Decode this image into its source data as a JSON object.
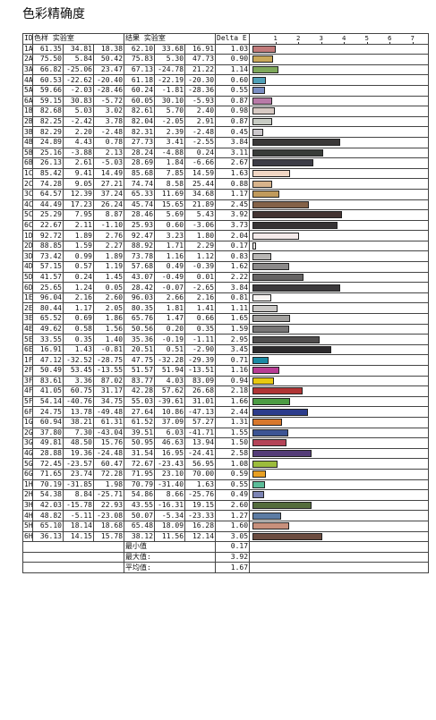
{
  "title": "色彩精确度",
  "header": {
    "id": "ID",
    "sample": "色样 实验室",
    "result": "结果 实验室",
    "delta": "Delta E"
  },
  "scale": [
    "1",
    "2",
    "3",
    "4",
    "5",
    "6",
    "7"
  ],
  "rows": [
    {
      "id": "1A",
      "s": [
        "61.35",
        "34.81",
        "18.38"
      ],
      "r": [
        "62.10",
        "33.68",
        "16.91"
      ],
      "d": "1.03",
      "color": "#c27a7a"
    },
    {
      "id": "2A",
      "s": [
        "75.50",
        "5.84",
        "50.42"
      ],
      "r": [
        "75.83",
        "5.30",
        "47.73"
      ],
      "d": "0.90",
      "color": "#c9a85a"
    },
    {
      "id": "3A",
      "s": [
        "66.82",
        "-25.06",
        "23.47"
      ],
      "r": [
        "67.13",
        "-24.78",
        "21.22"
      ],
      "d": "1.14",
      "color": "#7ea85a"
    },
    {
      "id": "4A",
      "s": [
        "60.53",
        "-22.62",
        "-20.40"
      ],
      "r": [
        "61.18",
        "-22.19",
        "-20.30"
      ],
      "d": "0.60",
      "color": "#4fa0b8"
    },
    {
      "id": "5A",
      "s": [
        "59.66",
        "-2.03",
        "-28.46"
      ],
      "r": [
        "60.24",
        "-1.81",
        "-28.36"
      ],
      "d": "0.55",
      "color": "#7a8ec4"
    },
    {
      "id": "6A",
      "s": [
        "59.15",
        "30.83",
        "-5.72"
      ],
      "r": [
        "60.05",
        "30.10",
        "-5.93"
      ],
      "d": "0.87",
      "color": "#b87aa8"
    },
    {
      "id": "1B",
      "s": [
        "82.68",
        "5.03",
        "3.02"
      ],
      "r": [
        "82.61",
        "5.70",
        "2.40"
      ],
      "d": "0.98",
      "color": "#d8cac4"
    },
    {
      "id": "2B",
      "s": [
        "82.25",
        "-2.42",
        "3.78"
      ],
      "r": [
        "82.04",
        "-2.05",
        "2.91"
      ],
      "d": "0.87",
      "color": "#c8ccc4"
    },
    {
      "id": "3B",
      "s": [
        "82.29",
        "2.20",
        "-2.48"
      ],
      "r": [
        "82.31",
        "2.39",
        "-2.48"
      ],
      "d": "0.45",
      "color": "#ccc8cc"
    },
    {
      "id": "4B",
      "s": [
        "24.89",
        "4.43",
        "0.78"
      ],
      "r": [
        "27.73",
        "3.41",
        "-2.55"
      ],
      "d": "3.84",
      "color": "#3a3838"
    },
    {
      "id": "5B",
      "s": [
        "25.16",
        "-3.88",
        "2.13"
      ],
      "r": [
        "28.24",
        "-4.88",
        "0.24"
      ],
      "d": "3.11",
      "color": "#383c38"
    },
    {
      "id": "6B",
      "s": [
        "26.13",
        "2.61",
        "-5.03"
      ],
      "r": [
        "28.69",
        "1.84",
        "-6.66"
      ],
      "d": "2.67",
      "color": "#3c3c46"
    },
    {
      "id": "1C",
      "s": [
        "85.42",
        "9.41",
        "14.49"
      ],
      "r": [
        "85.68",
        "7.85",
        "14.59"
      ],
      "d": "1.63",
      "color": "#f0d6c4"
    },
    {
      "id": "2C",
      "s": [
        "74.28",
        "9.05",
        "27.21"
      ],
      "r": [
        "74.74",
        "8.58",
        "25.44"
      ],
      "d": "0.88",
      "color": "#d8b48c"
    },
    {
      "id": "3C",
      "s": [
        "64.57",
        "12.39",
        "37.24"
      ],
      "r": [
        "65.33",
        "11.69",
        "34.68"
      ],
      "d": "1.17",
      "color": "#c09a5c"
    },
    {
      "id": "4C",
      "s": [
        "44.49",
        "17.23",
        "26.24"
      ],
      "r": [
        "45.74",
        "15.65",
        "21.89"
      ],
      "d": "2.45",
      "color": "#846248"
    },
    {
      "id": "5C",
      "s": [
        "25.29",
        "7.95",
        "8.87"
      ],
      "r": [
        "28.46",
        "5.69",
        "5.43"
      ],
      "d": "3.92",
      "color": "#443432"
    },
    {
      "id": "6C",
      "s": [
        "22.67",
        "2.11",
        "-1.10"
      ],
      "r": [
        "25.93",
        "0.60",
        "-3.06"
      ],
      "d": "3.73",
      "color": "#363334"
    },
    {
      "id": "1D",
      "s": [
        "92.72",
        "1.89",
        "2.76"
      ],
      "r": [
        "92.47",
        "3.23",
        "1.80"
      ],
      "d": "2.04",
      "color": "#f4eaea"
    },
    {
      "id": "2D",
      "s": [
        "88.85",
        "1.59",
        "2.27"
      ],
      "r": [
        "88.92",
        "1.71",
        "2.29"
      ],
      "d": "0.17",
      "color": "#e6e2e0"
    },
    {
      "id": "3D",
      "s": [
        "73.42",
        "0.99",
        "1.89"
      ],
      "r": [
        "73.78",
        "1.16",
        "1.12"
      ],
      "d": "0.83",
      "color": "#b8b6b4"
    },
    {
      "id": "4D",
      "s": [
        "57.15",
        "0.57",
        "1.19"
      ],
      "r": [
        "57.68",
        "0.49",
        "-0.39"
      ],
      "d": "1.62",
      "color": "#8c8a8a"
    },
    {
      "id": "5D",
      "s": [
        "41.57",
        "0.24",
        "1.45"
      ],
      "r": [
        "43.07",
        "-0.49",
        "0.01"
      ],
      "d": "2.22",
      "color": "#666464"
    },
    {
      "id": "6D",
      "s": [
        "25.65",
        "1.24",
        "0.05"
      ],
      "r": [
        "28.42",
        "-0.07",
        "-2.65"
      ],
      "d": "3.84",
      "color": "#3c3a3c"
    },
    {
      "id": "1E",
      "s": [
        "96.04",
        "2.16",
        "2.60"
      ],
      "r": [
        "96.03",
        "2.66",
        "2.16"
      ],
      "d": "0.81",
      "color": "#f8f4f2"
    },
    {
      "id": "2E",
      "s": [
        "80.44",
        "1.17",
        "2.05"
      ],
      "r": [
        "80.35",
        "1.81",
        "1.41"
      ],
      "d": "1.11",
      "color": "#cac8c6"
    },
    {
      "id": "3E",
      "s": [
        "65.52",
        "0.69",
        "1.86"
      ],
      "r": [
        "65.76",
        "1.47",
        "0.66"
      ],
      "d": "1.65",
      "color": "#a2a09e"
    },
    {
      "id": "4E",
      "s": [
        "49.62",
        "0.58",
        "1.56"
      ],
      "r": [
        "50.56",
        "0.20",
        "0.35"
      ],
      "d": "1.59",
      "color": "#787676"
    },
    {
      "id": "5E",
      "s": [
        "33.55",
        "0.35",
        "1.40"
      ],
      "r": [
        "35.36",
        "-0.19",
        "-1.11"
      ],
      "d": "2.95",
      "color": "#504e4e"
    },
    {
      "id": "6E",
      "s": [
        "16.91",
        "1.43",
        "-0.81"
      ],
      "r": [
        "20.51",
        "0.51",
        "-2.90"
      ],
      "d": "3.45",
      "color": "#2c2a2c"
    },
    {
      "id": "1F",
      "s": [
        "47.12",
        "-32.52",
        "-28.75"
      ],
      "r": [
        "47.75",
        "-32.28",
        "-29.39"
      ],
      "d": "0.71",
      "color": "#1a8aa4"
    },
    {
      "id": "2F",
      "s": [
        "50.49",
        "53.45",
        "-13.55"
      ],
      "r": [
        "51.57",
        "51.94",
        "-13.51"
      ],
      "d": "1.16",
      "color": "#b83c94"
    },
    {
      "id": "3F",
      "s": [
        "83.61",
        "3.36",
        "87.02"
      ],
      "r": [
        "83.77",
        "4.03",
        "83.09"
      ],
      "d": "0.94",
      "color": "#e8c810"
    },
    {
      "id": "4F",
      "s": [
        "41.05",
        "60.75",
        "31.17"
      ],
      "r": [
        "42.28",
        "57.62",
        "26.68"
      ],
      "d": "2.18",
      "color": "#b03434"
    },
    {
      "id": "5F",
      "s": [
        "54.14",
        "-40.76",
        "34.75"
      ],
      "r": [
        "55.03",
        "-39.61",
        "31.01"
      ],
      "d": "1.66",
      "color": "#4c9c44"
    },
    {
      "id": "6F",
      "s": [
        "24.75",
        "13.78",
        "-49.48"
      ],
      "r": [
        "27.64",
        "10.86",
        "-47.13"
      ],
      "d": "2.44",
      "color": "#2c3c8c"
    },
    {
      "id": "1G",
      "s": [
        "60.94",
        "38.21",
        "61.31"
      ],
      "r": [
        "61.52",
        "37.09",
        "57.27"
      ],
      "d": "1.31",
      "color": "#d8782c"
    },
    {
      "id": "2G",
      "s": [
        "37.80",
        "7.30",
        "-43.04"
      ],
      "r": [
        "39.51",
        "6.03",
        "-41.71"
      ],
      "d": "1.55",
      "color": "#3c5494"
    },
    {
      "id": "3G",
      "s": [
        "49.81",
        "48.50",
        "15.76"
      ],
      "r": [
        "50.95",
        "46.63",
        "13.94"
      ],
      "d": "1.50",
      "color": "#b44458"
    },
    {
      "id": "4G",
      "s": [
        "28.88",
        "19.36",
        "-24.48"
      ],
      "r": [
        "31.54",
        "16.95",
        "-24.41"
      ],
      "d": "2.58",
      "color": "#543c78"
    },
    {
      "id": "5G",
      "s": [
        "72.45",
        "-23.57",
        "60.47"
      ],
      "r": [
        "72.67",
        "-23.43",
        "56.95"
      ],
      "d": "1.08",
      "color": "#9cbc3c"
    },
    {
      "id": "6G",
      "s": [
        "71.65",
        "23.74",
        "72.28"
      ],
      "r": [
        "71.95",
        "23.10",
        "70.00"
      ],
      "d": "0.59",
      "color": "#e8a024"
    },
    {
      "id": "1H",
      "s": [
        "70.19",
        "-31.85",
        "1.98"
      ],
      "r": [
        "70.79",
        "-31.40",
        "1.63"
      ],
      "d": "0.55",
      "color": "#5cbc98"
    },
    {
      "id": "2H",
      "s": [
        "54.38",
        "8.84",
        "-25.71"
      ],
      "r": [
        "54.86",
        "8.66",
        "-25.76"
      ],
      "d": "0.49",
      "color": "#7c84b4"
    },
    {
      "id": "3H",
      "s": [
        "42.03",
        "-15.78",
        "22.93"
      ],
      "r": [
        "43.55",
        "-16.31",
        "19.15"
      ],
      "d": "2.60",
      "color": "#546c3c"
    },
    {
      "id": "4H",
      "s": [
        "48.82",
        "-5.11",
        "-23.08"
      ],
      "r": [
        "50.07",
        "-5.34",
        "-23.33"
      ],
      "d": "1.27",
      "color": "#5c7ca4"
    },
    {
      "id": "5H",
      "s": [
        "65.10",
        "18.14",
        "18.68"
      ],
      "r": [
        "65.48",
        "18.09",
        "16.28"
      ],
      "d": "1.60",
      "color": "#c8907c"
    },
    {
      "id": "6H",
      "s": [
        "36.13",
        "14.15",
        "15.78"
      ],
      "r": [
        "38.12",
        "11.56",
        "12.14"
      ],
      "d": "3.05",
      "color": "#6c4c40"
    }
  ],
  "summary": [
    {
      "label": "最小值",
      "value": "0.17"
    },
    {
      "label": "最大值:",
      "value": "3.92"
    },
    {
      "label": "平均值:",
      "value": "1.67"
    }
  ]
}
